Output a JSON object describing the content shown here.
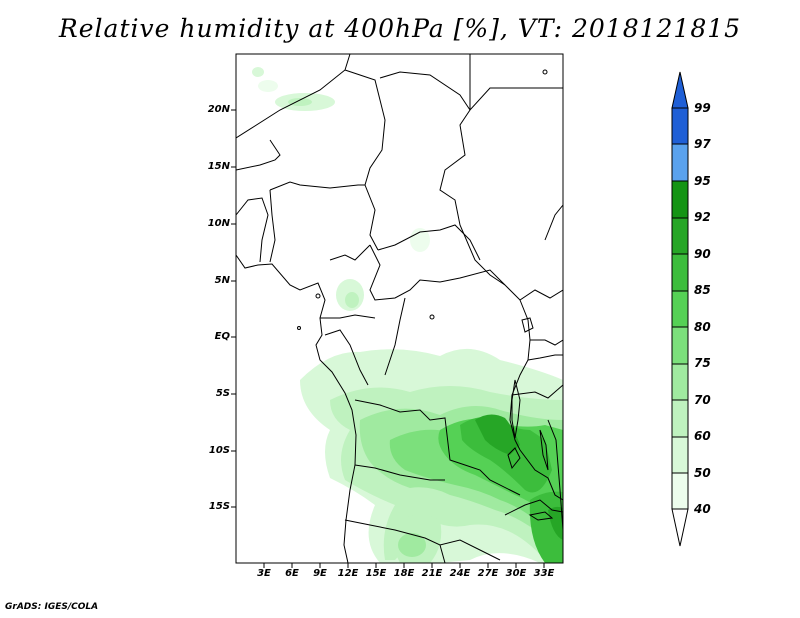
{
  "title": "Relative humidity at 400hPa [%], VT: 2018121815",
  "footer": "GrADS: IGES/COLA",
  "latitude_labels": [
    "20N",
    "15N",
    "10N",
    "5N",
    "EQ",
    "5S",
    "10S",
    "15S"
  ],
  "longitude_labels": [
    "3E",
    "6E",
    "9E",
    "12E",
    "15E",
    "18E",
    "21E",
    "24E",
    "27E",
    "30E",
    "33E"
  ],
  "colorbar": {
    "labels": [
      "99",
      "97",
      "95",
      "92",
      "90",
      "85",
      "80",
      "75",
      "70",
      "60",
      "50",
      "40"
    ],
    "colors": [
      "#1f5fd6",
      "#2a78e2",
      "#5aa2ee",
      "#149414",
      "#26a626",
      "#3cbd3c",
      "#55d155",
      "#7ce07c",
      "#a0eaa0",
      "#bff2bf",
      "#d8f8d8",
      "#edfded"
    ],
    "over_color": "#1f5fd6",
    "under_color": "#ffffff"
  },
  "map": {
    "lon_range": [
      0,
      35
    ],
    "lat_range": [
      -20,
      24.5
    ],
    "variable": "Relative humidity",
    "level": "400hPa",
    "units": "%"
  }
}
